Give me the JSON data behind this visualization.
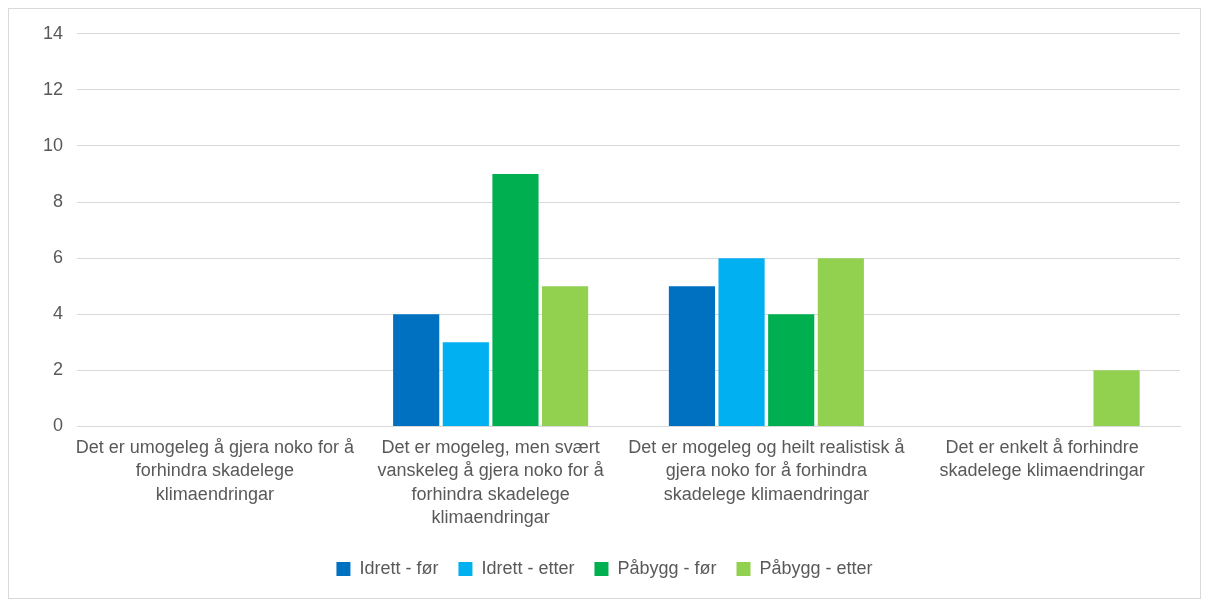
{
  "chart_data": {
    "type": "bar",
    "categories": [
      "Det er umogeleg å gjera noko for å forhindra skadelege klimaendringar",
      "Det er mogeleg, men svært vanskeleg å gjera noko for å forhindra skadelege klimaendringar",
      "Det er mogeleg og heilt realistisk å gjera noko for å forhindra skadelege klimaendringar",
      "Det er enkelt å forhindre skadelege klimaendringar"
    ],
    "series": [
      {
        "name": "Idrett - før",
        "color": "#0070c0",
        "values": [
          0,
          4,
          5,
          0
        ]
      },
      {
        "name": "Idrett - etter",
        "color": "#00b0f0",
        "values": [
          0,
          3,
          6,
          0
        ]
      },
      {
        "name": "Påbygg - før",
        "color": "#00b050",
        "values": [
          0,
          9,
          4,
          0
        ]
      },
      {
        "name": "Påbygg - etter",
        "color": "#92d050",
        "values": [
          0,
          5,
          6,
          2
        ]
      }
    ],
    "ylim": [
      0,
      14
    ],
    "yticks": [
      0,
      2,
      4,
      6,
      8,
      10,
      12,
      14
    ],
    "grid": "y",
    "legend": "bottom"
  }
}
